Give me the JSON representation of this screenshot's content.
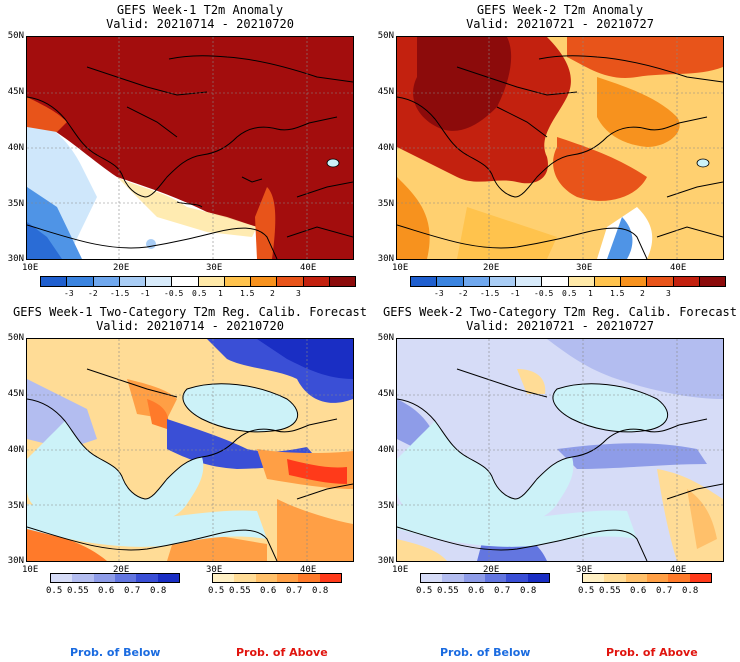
{
  "panels": [
    {
      "title": "GEFS Week-1 T2m Anomaly",
      "valid": "Valid: 20210714 - 20210720"
    },
    {
      "title": "GEFS Week-2 T2m Anomaly",
      "valid": "Valid: 20210721 - 20210727"
    },
    {
      "title": "GEFS Week-1 Two-Category T2m Reg. Calib. Forecast",
      "valid": "Valid: 20210714 - 20210720"
    },
    {
      "title": "GEFS Week-2 Two-Category T2m Reg. Calib. Forecast",
      "valid": "Valid: 20210721 - 20210727"
    }
  ],
  "lat_labels": [
    "50N",
    "45N",
    "40N",
    "35N",
    "30N"
  ],
  "lon_labels": [
    "10E",
    "20E",
    "30E",
    "40E"
  ],
  "anomaly_ticks": [
    "-3",
    "-2",
    "-1.5",
    "-1",
    "-0.5",
    "0.5",
    "1",
    "1.5",
    "2",
    "3"
  ],
  "anomaly_colors": [
    "#1f5fcf",
    "#3b84e0",
    "#70a8ee",
    "#a9cdf5",
    "#d8ebfb",
    "#ffffff",
    "#ffe9a8",
    "#ffc34d",
    "#f7921e",
    "#e8541a",
    "#c3210f",
    "#8c0b0b"
  ],
  "prob_ticks": [
    "0.5",
    "0.55",
    "0.6",
    "0.7",
    "0.8"
  ],
  "below_colors": [
    "#d6dcf7",
    "#b3bdf0",
    "#8e9ce8",
    "#6376e0",
    "#3a4fd6",
    "#1a2ec4"
  ],
  "above_colors": [
    "#fff0c4",
    "#ffdc96",
    "#ffc06a",
    "#ff9f45",
    "#ff7a2a",
    "#ff3a1a"
  ],
  "prob_below_label": "Prob. of Below",
  "prob_above_label": "Prob. of Above",
  "colors": {
    "ocean_light": "#ccf2f8",
    "label_below": "#1a6be0",
    "label_above": "#e0140e"
  }
}
